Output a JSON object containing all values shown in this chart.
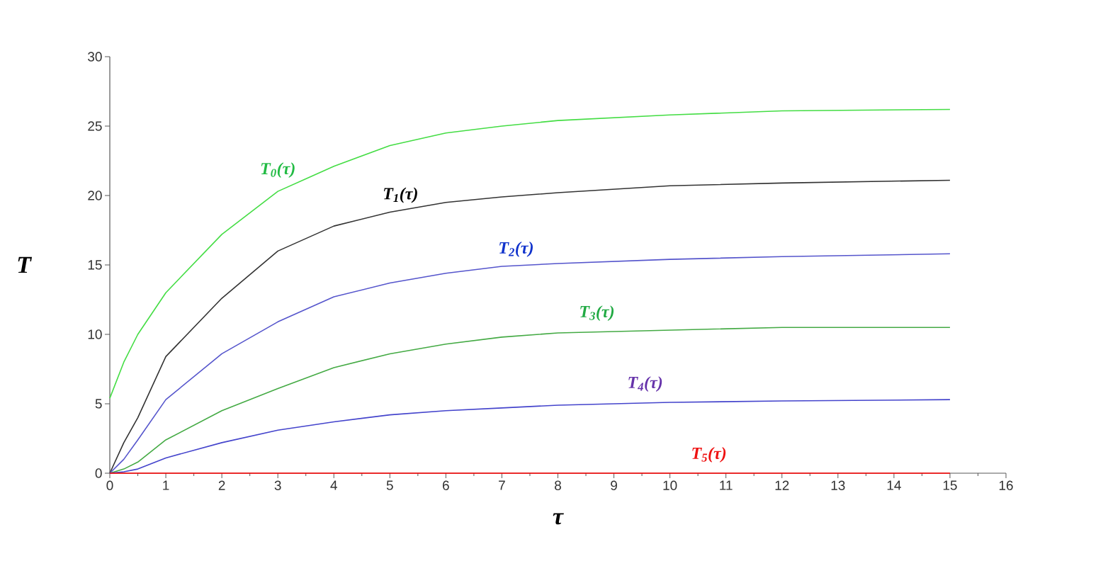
{
  "chart_data": {
    "type": "line",
    "xlabel": "τ",
    "ylabel": "T",
    "x": [
      0,
      0.25,
      0.5,
      1,
      2,
      3,
      4,
      5,
      6,
      7,
      8,
      10,
      12,
      15
    ],
    "series": [
      {
        "name": "T$_{0}$(τ)",
        "color": "#44dd44",
        "values": [
          5.4,
          8.0,
          10.0,
          13.0,
          17.2,
          20.3,
          22.1,
          23.6,
          24.5,
          25.0,
          25.4,
          25.8,
          26.1,
          26.2
        ]
      },
      {
        "name": "T$_{1}$(τ)",
        "color": "#333333",
        "values": [
          0,
          2.2,
          4.0,
          8.4,
          12.6,
          16.0,
          17.8,
          18.8,
          19.5,
          19.9,
          20.2,
          20.7,
          20.9,
          21.1
        ]
      },
      {
        "name": "T$_{2}$(τ)",
        "color": "#5555cc",
        "values": [
          0,
          1.0,
          2.4,
          5.3,
          8.6,
          10.9,
          12.7,
          13.7,
          14.4,
          14.9,
          15.1,
          15.4,
          15.6,
          15.8
        ]
      },
      {
        "name": "T$_{3}$(τ)",
        "color": "#44aa44",
        "values": [
          0,
          0.3,
          0.8,
          2.4,
          4.5,
          6.1,
          7.6,
          8.6,
          9.3,
          9.8,
          10.1,
          10.3,
          10.5,
          10.5
        ]
      },
      {
        "name": "T$_{4}$(τ)",
        "color": "#4444cc",
        "values": [
          0,
          0.1,
          0.3,
          1.1,
          2.2,
          3.1,
          3.7,
          4.2,
          4.5,
          4.7,
          4.9,
          5.1,
          5.2,
          5.3
        ]
      },
      {
        "name": "T$_{5}$(τ)",
        "color": "#ff0000",
        "values": [
          0,
          0,
          0,
          0,
          0,
          0,
          0,
          0,
          0,
          0,
          0,
          0,
          0,
          0
        ]
      }
    ],
    "xlim": [
      0,
      16
    ],
    "ylim": [
      0,
      30
    ],
    "xticks": [
      0,
      1,
      2,
      3,
      4,
      5,
      6,
      7,
      8,
      9,
      10,
      11,
      12,
      13,
      14,
      15,
      16
    ],
    "yticks": [
      0,
      5,
      10,
      15,
      20,
      25,
      30
    ],
    "grid": false,
    "marker": "none",
    "line_style": "solid"
  }
}
